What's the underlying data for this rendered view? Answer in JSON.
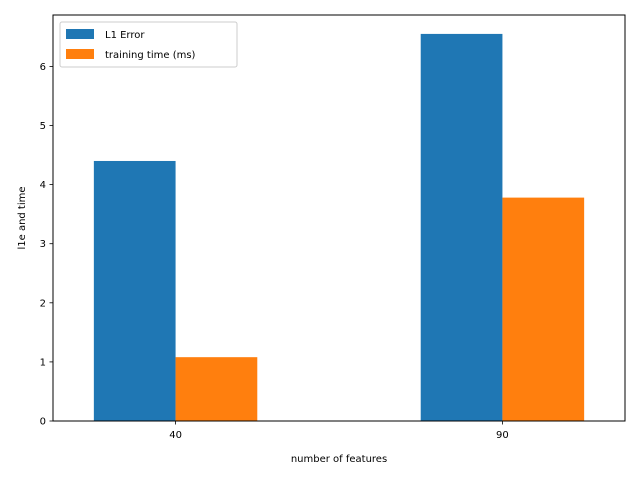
{
  "chart_data": {
    "type": "bar",
    "title": "",
    "xlabel": "number of features",
    "ylabel": "l1e and time",
    "categories": [
      "40",
      "90"
    ],
    "series": [
      {
        "name": "L1 Error",
        "values": [
          4.4,
          6.55
        ],
        "color": "#1f77b4"
      },
      {
        "name": "training time (ms)",
        "values": [
          1.08,
          3.78
        ],
        "color": "#ff7f0e"
      }
    ],
    "ylim": [
      0,
      6.87
    ],
    "yticks": [
      0,
      1,
      2,
      3,
      4,
      5,
      6
    ],
    "grid": false,
    "legend_position": "top-left"
  }
}
